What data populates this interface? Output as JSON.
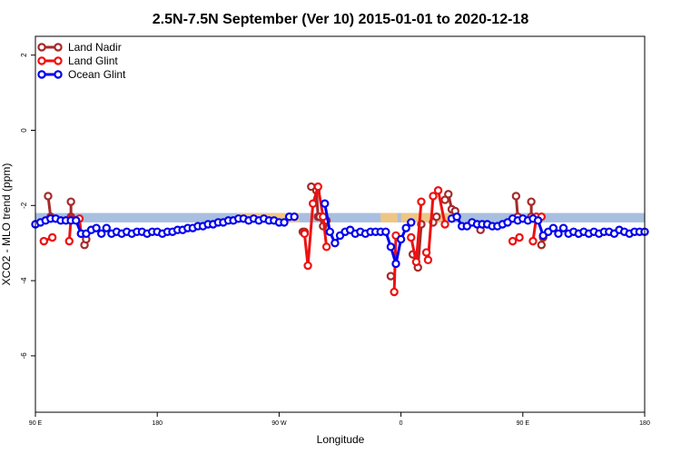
{
  "chart_data": {
    "type": "line",
    "title": "2.5N-7.5N September (Ver 10)   2015-01-01 to 2020-12-18",
    "xlabel": "Longitude",
    "ylabel": "XCO2 - MLO trend (ppm)",
    "xlim": [
      90,
      450
    ],
    "ylim": [
      -7.5,
      2.5
    ],
    "x_ticks": [
      {
        "value": 90,
        "label": "90 E"
      },
      {
        "value": 162,
        "label": "180"
      },
      {
        "value": 234,
        "label": "90 W"
      },
      {
        "value": 306,
        "label": "0"
      },
      {
        "value": 378,
        "label": "90 E"
      },
      {
        "value": 450,
        "label": "180"
      }
    ],
    "y_ticks": [
      2,
      0,
      -2,
      -4,
      -6
    ],
    "grid": false,
    "legend_position": "top-left",
    "band": {
      "y_low": -2.45,
      "y_high": -2.2,
      "color": "#a8bfdf"
    },
    "yellow_patches": [
      {
        "x_start": 294,
        "x_end": 304,
        "y_low": -2.45,
        "y_high": -2.2,
        "color": "#f5c77a"
      },
      {
        "x_start": 306,
        "x_end": 336,
        "y_low": -2.45,
        "y_high": -2.2,
        "color": "#f5c77a"
      },
      {
        "x_start": 209,
        "x_end": 246,
        "y_low": -2.45,
        "y_high": -2.2,
        "color": "#f5c77a"
      }
    ],
    "series": [
      {
        "name": "Land Nadir",
        "color": "#a52a2a",
        "segments": [
          [
            [
              97.5,
              -1.75
            ],
            [
              99,
              -2.3
            ]
          ],
          [
            [
              111,
              -1.9
            ],
            [
              111,
              -2.3
            ]
          ],
          [
            [
              119,
              -3.05
            ],
            [
              120,
              -2.9
            ]
          ],
          [
            [
              248,
              -2.7
            ],
            [
              249,
              -2.7
            ]
          ],
          [
            [
              253,
              -1.5
            ],
            [
              256,
              -1.6
            ],
            [
              257,
              -2.3
            ],
            [
              258,
              -2.3
            ],
            [
              260,
              -2.55
            ],
            [
              262,
              -2.4
            ]
          ],
          [
            [
              300,
              -3.88
            ]
          ],
          [
            [
              313,
              -3.3
            ],
            [
              316,
              -3.65
            ],
            [
              318,
              -2.5
            ]
          ],
          [
            [
              325,
              -2.45
            ],
            [
              327,
              -2.3
            ]
          ],
          [
            [
              332,
              -1.85
            ],
            [
              334,
              -1.7
            ],
            [
              336,
              -2.1
            ],
            [
              338,
              -2.15
            ]
          ],
          [
            [
              353,
              -2.65
            ]
          ],
          [
            [
              374,
              -1.75
            ],
            [
              375,
              -2.3
            ]
          ],
          [
            [
              383,
              -1.9
            ],
            [
              383,
              -2.3
            ]
          ],
          [
            [
              389,
              -3.05
            ],
            [
              390,
              -2.85
            ]
          ]
        ]
      },
      {
        "name": "Land Glint",
        "color": "#ee1111",
        "segments": [
          [
            [
              95,
              -2.95
            ],
            [
              100,
              -2.85
            ]
          ],
          [
            [
              110,
              -2.95
            ],
            [
              111,
              -2.35
            ],
            [
              116,
              -2.35
            ],
            [
              117,
              -2.75
            ]
          ],
          [
            [
              249,
              -2.75
            ],
            [
              251,
              -3.6
            ],
            [
              254,
              -1.95
            ],
            [
              257,
              -1.5
            ],
            [
              260,
              -2.3
            ],
            [
              262,
              -3.1
            ]
          ],
          [
            [
              302,
              -4.3
            ],
            [
              303,
              -2.8
            ]
          ],
          [
            [
              312,
              -2.85
            ],
            [
              315,
              -3.5
            ],
            [
              318,
              -1.9
            ]
          ],
          [
            [
              321,
              -3.25
            ],
            [
              322,
              -3.45
            ],
            [
              325,
              -1.75
            ],
            [
              328,
              -1.6
            ],
            [
              332,
              -2.5
            ]
          ],
          [
            [
              372,
              -2.95
            ],
            [
              376,
              -2.85
            ]
          ],
          [
            [
              384,
              -2.95
            ],
            [
              386,
              -2.3
            ],
            [
              389,
              -2.3
            ]
          ]
        ]
      },
      {
        "name": "Ocean Glint",
        "color": "#0000ee",
        "segments": [
          [
            [
              90,
              -2.5
            ],
            [
              93,
              -2.45
            ],
            [
              96,
              -2.4
            ],
            [
              99,
              -2.35
            ],
            [
              102,
              -2.35
            ],
            [
              105,
              -2.4
            ],
            [
              108,
              -2.4
            ],
            [
              111,
              -2.4
            ],
            [
              114,
              -2.4
            ],
            [
              117,
              -2.75
            ],
            [
              120,
              -2.75
            ],
            [
              123,
              -2.65
            ],
            [
              126,
              -2.6
            ],
            [
              129,
              -2.75
            ],
            [
              132,
              -2.6
            ],
            [
              135,
              -2.75
            ],
            [
              138,
              -2.7
            ],
            [
              141,
              -2.75
            ],
            [
              144,
              -2.7
            ],
            [
              147,
              -2.75
            ],
            [
              150,
              -2.7
            ],
            [
              153,
              -2.7
            ],
            [
              156,
              -2.75
            ],
            [
              159,
              -2.7
            ],
            [
              162,
              -2.7
            ],
            [
              165,
              -2.75
            ],
            [
              168,
              -2.7
            ],
            [
              171,
              -2.7
            ],
            [
              174,
              -2.65
            ],
            [
              177,
              -2.65
            ],
            [
              180,
              -2.6
            ],
            [
              183,
              -2.6
            ],
            [
              186,
              -2.55
            ],
            [
              189,
              -2.55
            ],
            [
              192,
              -2.5
            ],
            [
              195,
              -2.5
            ],
            [
              198,
              -2.45
            ],
            [
              201,
              -2.45
            ],
            [
              204,
              -2.4
            ],
            [
              207,
              -2.4
            ],
            [
              210,
              -2.35
            ],
            [
              213,
              -2.35
            ],
            [
              216,
              -2.4
            ],
            [
              219,
              -2.35
            ],
            [
              222,
              -2.4
            ],
            [
              225,
              -2.35
            ],
            [
              228,
              -2.4
            ],
            [
              231,
              -2.4
            ],
            [
              234,
              -2.45
            ],
            [
              237,
              -2.45
            ],
            [
              240,
              -2.3
            ],
            [
              243,
              -2.3
            ]
          ],
          [
            [
              261,
              -1.95
            ],
            [
              264,
              -2.7
            ],
            [
              267,
              -3.0
            ],
            [
              270,
              -2.8
            ],
            [
              273,
              -2.7
            ],
            [
              276,
              -2.65
            ],
            [
              279,
              -2.75
            ],
            [
              282,
              -2.7
            ],
            [
              285,
              -2.75
            ],
            [
              288,
              -2.7
            ],
            [
              291,
              -2.7
            ],
            [
              294,
              -2.7
            ],
            [
              297,
              -2.7
            ],
            [
              300,
              -3.1
            ],
            [
              303,
              -3.55
            ],
            [
              306,
              -2.9
            ],
            [
              309,
              -2.6
            ],
            [
              312,
              -2.45
            ]
          ],
          [
            [
              336,
              -2.35
            ],
            [
              339,
              -2.3
            ],
            [
              342,
              -2.55
            ],
            [
              345,
              -2.55
            ],
            [
              348,
              -2.45
            ],
            [
              351,
              -2.5
            ],
            [
              354,
              -2.5
            ],
            [
              357,
              -2.5
            ],
            [
              360,
              -2.55
            ],
            [
              363,
              -2.55
            ],
            [
              366,
              -2.5
            ],
            [
              369,
              -2.45
            ],
            [
              372,
              -2.35
            ],
            [
              375,
              -2.4
            ],
            [
              378,
              -2.35
            ],
            [
              381,
              -2.4
            ],
            [
              384,
              -2.35
            ],
            [
              387,
              -2.4
            ],
            [
              390,
              -2.8
            ],
            [
              393,
              -2.7
            ],
            [
              396,
              -2.6
            ],
            [
              399,
              -2.75
            ],
            [
              402,
              -2.6
            ],
            [
              405,
              -2.75
            ],
            [
              408,
              -2.7
            ],
            [
              411,
              -2.75
            ],
            [
              414,
              -2.7
            ],
            [
              417,
              -2.75
            ],
            [
              420,
              -2.7
            ],
            [
              423,
              -2.75
            ],
            [
              426,
              -2.7
            ],
            [
              429,
              -2.7
            ],
            [
              432,
              -2.75
            ],
            [
              435,
              -2.65
            ],
            [
              438,
              -2.7
            ],
            [
              441,
              -2.75
            ],
            [
              444,
              -2.7
            ],
            [
              447,
              -2.7
            ],
            [
              450,
              -2.7
            ]
          ]
        ]
      }
    ]
  }
}
